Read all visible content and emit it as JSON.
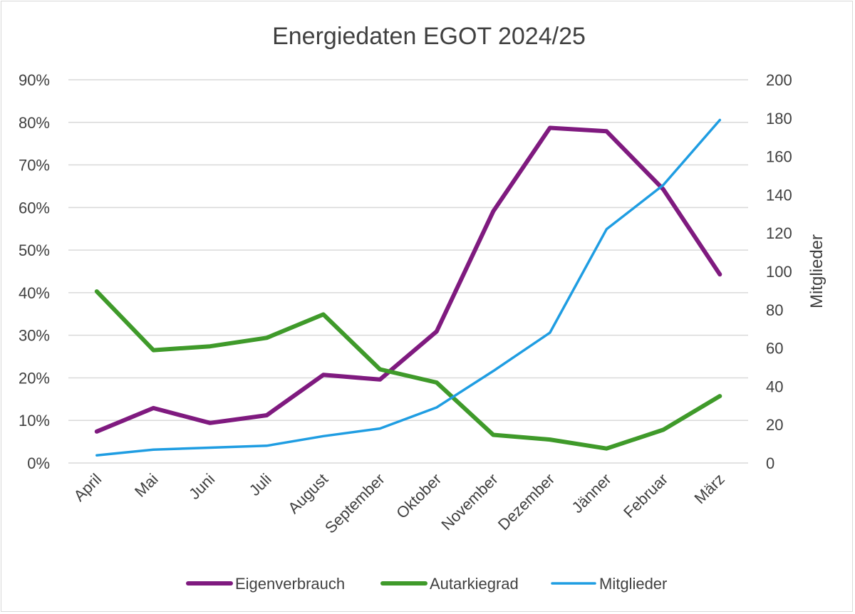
{
  "chart_data": {
    "type": "line",
    "title": "Energiedaten EGOT 2024/25",
    "categories": [
      "April",
      "Mai",
      "Juni",
      "Juli",
      "August",
      "September",
      "Oktober",
      "November",
      "Dezember",
      "Jänner",
      "Februar",
      "März"
    ],
    "y_left": {
      "label": "",
      "min": 0,
      "max": 0.9,
      "step": 0.1,
      "tick_labels": [
        "0%",
        "10%",
        "20%",
        "30%",
        "40%",
        "50%",
        "60%",
        "70%",
        "80%",
        "90%"
      ]
    },
    "y_right": {
      "label": "Mitglieder",
      "min": 0,
      "max": 200,
      "step": 20,
      "tick_labels": [
        "0",
        "20",
        "40",
        "60",
        "80",
        "100",
        "120",
        "140",
        "160",
        "180",
        "200"
      ]
    },
    "grid": true,
    "legend_position": "bottom",
    "series": [
      {
        "name": "Eigenverbrauch",
        "axis": "left",
        "color": "#7f1a7f",
        "values": [
          0.074,
          0.129,
          0.094,
          0.112,
          0.207,
          0.196,
          0.309,
          0.591,
          0.787,
          0.779,
          0.643,
          0.443
        ]
      },
      {
        "name": "Autarkiegrad",
        "axis": "left",
        "color": "#3f9a2a",
        "values": [
          0.403,
          0.265,
          0.274,
          0.294,
          0.349,
          0.22,
          0.189,
          0.066,
          0.055,
          0.034,
          0.078,
          0.157
        ]
      },
      {
        "name": "Mitglieder",
        "axis": "right",
        "color": "#1f9de2",
        "values": [
          4,
          7,
          8,
          9,
          14,
          18,
          29,
          48,
          68,
          122,
          145,
          179
        ]
      }
    ]
  }
}
